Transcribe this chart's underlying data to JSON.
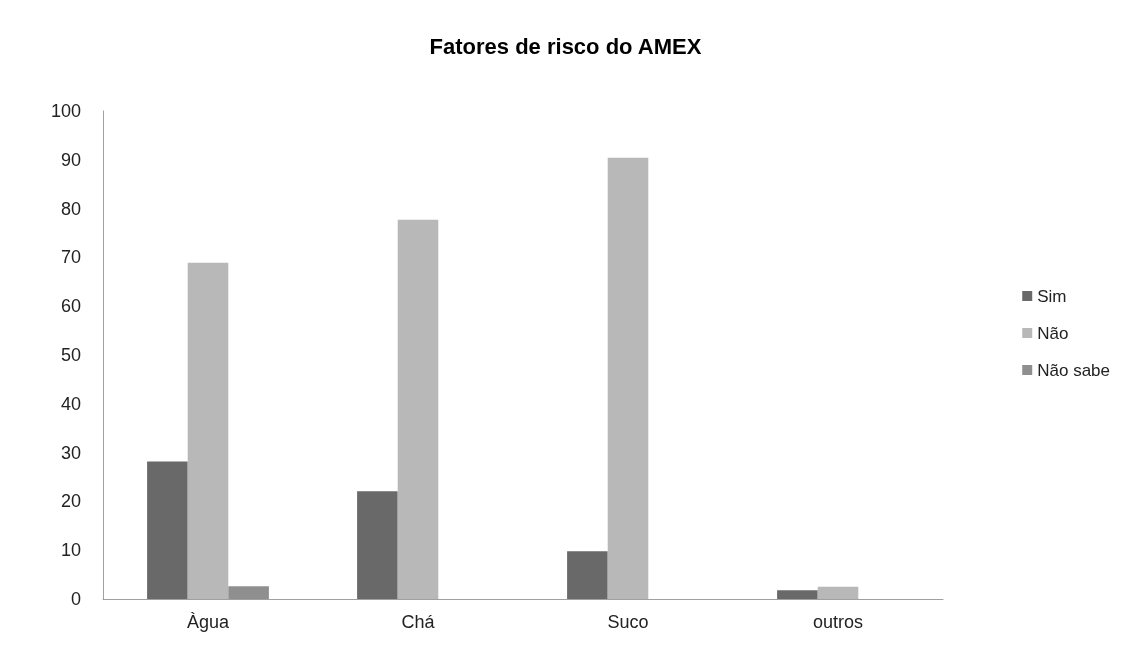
{
  "chart_data": {
    "type": "bar",
    "title": "Fatores de risco do AMEX",
    "categories": [
      "Àgua",
      "Chá",
      "Suco",
      "outros"
    ],
    "series": [
      {
        "name": "Sim",
        "color": "#696969",
        "values": [
          28.2,
          22.1,
          9.8,
          1.8
        ]
      },
      {
        "name": "Não",
        "color": "#b8b8b8",
        "values": [
          68.9,
          77.7,
          90.4,
          2.5
        ]
      },
      {
        "name": "Não sabe",
        "color": "#8f8f8f",
        "values": [
          2.6,
          0,
          0,
          0
        ]
      }
    ],
    "ylim": [
      0,
      100
    ],
    "yticks": [
      0,
      10,
      20,
      30,
      40,
      50,
      60,
      70,
      80,
      90,
      100
    ],
    "grid": false,
    "legend": "right"
  }
}
